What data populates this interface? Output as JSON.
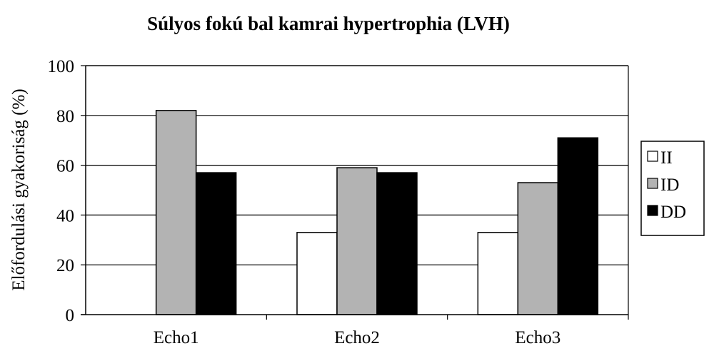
{
  "chart_data": {
    "type": "bar",
    "title": "Súlyos fokú bal kamrai hypertrophia (LVH)",
    "xlabel": "",
    "ylabel": "Előfordulási gyakoriság (%)",
    "categories": [
      "Echo1",
      "Echo2",
      "Echo3"
    ],
    "series": [
      {
        "name": "II",
        "values": [
          0,
          33,
          33
        ],
        "color": "#ffffff"
      },
      {
        "name": "ID",
        "values": [
          82,
          59,
          53
        ],
        "color": "#b3b3b3"
      },
      {
        "name": "DD",
        "values": [
          57,
          57,
          71
        ],
        "color": "#000000"
      }
    ],
    "ylim": [
      0,
      100
    ],
    "yticks": [
      "0",
      "20",
      "40",
      "60",
      "80",
      "100"
    ],
    "grid": true,
    "legend_position": "right"
  }
}
